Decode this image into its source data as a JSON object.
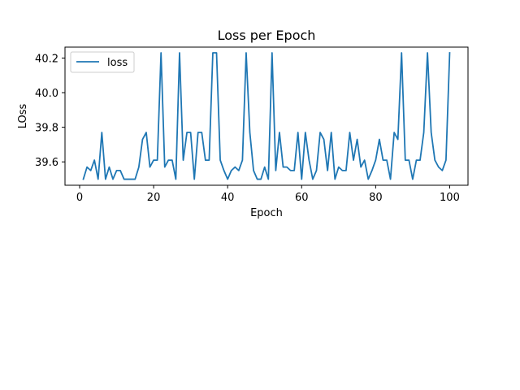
{
  "chart_data": {
    "type": "line",
    "title": "Loss per Epoch",
    "xlabel": "Epoch",
    "ylabel": "LOss",
    "xlim": [
      -3.95,
      104.95
    ],
    "ylim": [
      39.465,
      40.263
    ],
    "xticks": [
      0,
      20,
      40,
      60,
      80,
      100
    ],
    "yticks": [
      39.6,
      39.8,
      40.0,
      40.2
    ],
    "ytick_labels": [
      "39.6",
      "39.8",
      "40.0",
      "40.2"
    ],
    "grid": false,
    "legend": {
      "position": "upper-left",
      "entries": [
        "loss"
      ]
    },
    "series": [
      {
        "name": "loss",
        "color": "#1f77b4",
        "x": [
          1,
          2,
          3,
          4,
          5,
          6,
          7,
          8,
          9,
          10,
          11,
          12,
          13,
          14,
          15,
          16,
          17,
          18,
          19,
          20,
          21,
          22,
          23,
          24,
          25,
          26,
          27,
          28,
          29,
          30,
          31,
          32,
          33,
          34,
          35,
          36,
          37,
          38,
          39,
          40,
          41,
          42,
          43,
          44,
          45,
          46,
          47,
          48,
          49,
          50,
          51,
          52,
          53,
          54,
          55,
          56,
          57,
          58,
          59,
          60,
          61,
          62,
          63,
          64,
          65,
          66,
          67,
          68,
          69,
          70,
          71,
          72,
          73,
          74,
          75,
          76,
          77,
          78,
          79,
          80,
          81,
          82,
          83,
          84,
          85,
          86,
          87,
          88,
          89,
          90,
          91,
          92,
          93,
          94,
          95,
          96,
          97,
          98,
          99,
          100
        ],
        "y": [
          39.5,
          39.57,
          39.55,
          39.61,
          39.5,
          39.77,
          39.5,
          39.57,
          39.5,
          39.55,
          39.55,
          39.5,
          39.5,
          39.5,
          39.5,
          39.57,
          39.73,
          39.77,
          39.57,
          39.61,
          39.61,
          40.23,
          39.57,
          39.61,
          39.61,
          39.5,
          40.23,
          39.61,
          39.77,
          39.77,
          39.5,
          39.77,
          39.77,
          39.61,
          39.61,
          40.23,
          40.23,
          39.61,
          39.55,
          39.5,
          39.55,
          39.57,
          39.55,
          39.61,
          40.23,
          39.77,
          39.55,
          39.5,
          39.5,
          39.57,
          39.5,
          40.23,
          39.55,
          39.77,
          39.57,
          39.57,
          39.55,
          39.55,
          39.77,
          39.5,
          39.77,
          39.61,
          39.5,
          39.55,
          39.77,
          39.73,
          39.55,
          39.77,
          39.5,
          39.57,
          39.55,
          39.55,
          39.77,
          39.61,
          39.73,
          39.57,
          39.61,
          39.5,
          39.55,
          39.61,
          39.73,
          39.61,
          39.61,
          39.5,
          39.77,
          39.73,
          40.23,
          39.61,
          39.61,
          39.5,
          39.61,
          39.61,
          39.77,
          40.23,
          39.77,
          39.61,
          39.57,
          39.55,
          39.61,
          40.23
        ]
      }
    ]
  }
}
